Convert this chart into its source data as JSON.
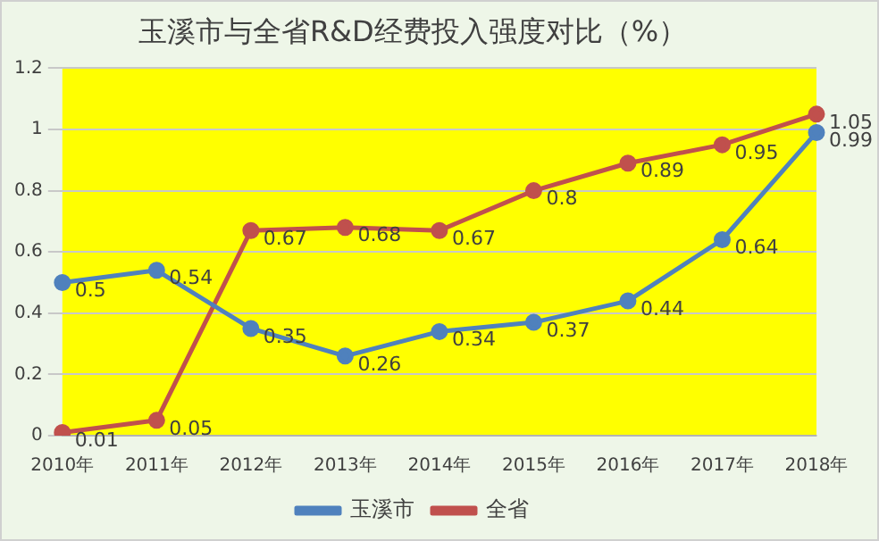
{
  "chart_data": {
    "type": "line",
    "title": "玉溪市与全省R&D经费投入强度对比（%）",
    "categories": [
      "2010年",
      "2011年",
      "2012年",
      "2013年",
      "2014年",
      "2015年",
      "2016年",
      "2017年",
      "2018年"
    ],
    "series": [
      {
        "name": "玉溪市",
        "color": "#4f81bd",
        "values": [
          0.5,
          0.54,
          0.35,
          0.26,
          0.34,
          0.37,
          0.44,
          0.64,
          0.99
        ]
      },
      {
        "name": "全省",
        "color": "#c0504d",
        "values": [
          0.01,
          0.05,
          0.67,
          0.68,
          0.67,
          0.8,
          0.89,
          0.95,
          1.05
        ]
      }
    ],
    "ylim": [
      0,
      1.2
    ],
    "yticks": [
      0,
      0.2,
      0.4,
      0.6,
      0.8,
      1,
      1.2
    ],
    "grid": "y",
    "legend": "bottom",
    "marker": "circle",
    "line_style": "solid",
    "data_labels": true
  }
}
